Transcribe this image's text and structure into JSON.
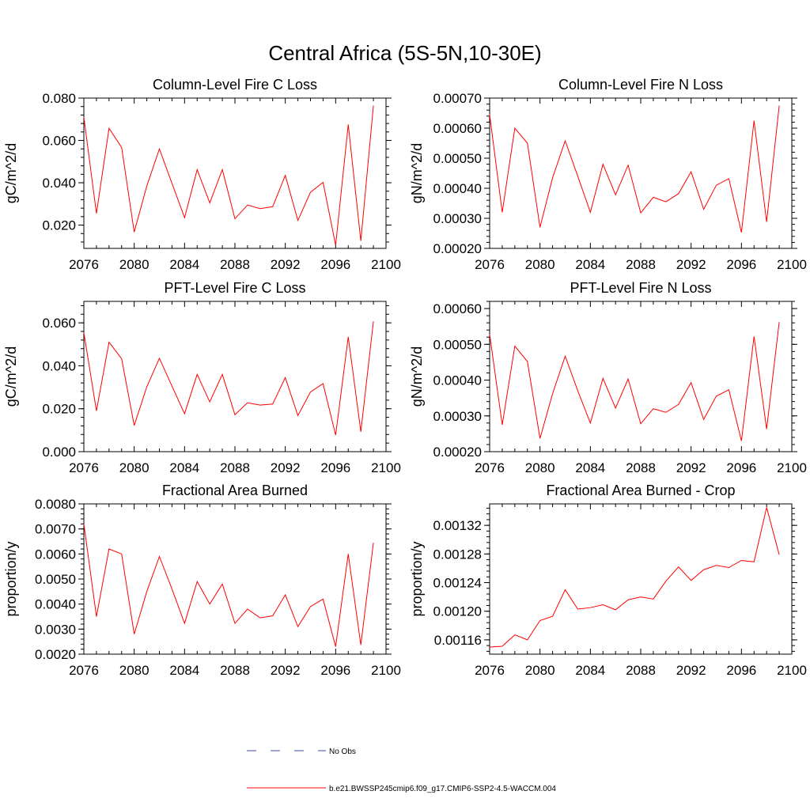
{
  "figure": {
    "title": "Central Africa (5S-5N,10-30E)",
    "legend": [
      {
        "label": "No Obs",
        "color": "#3b4fa3",
        "dash": true
      },
      {
        "label": "b.e21.BWSSP245cmip6.f09_g17.CMIP6-SSP2-4.5-WACCM.004",
        "color": "#ff0000",
        "dash": false
      }
    ]
  },
  "chart_data": [
    {
      "type": "line",
      "title": "Column-Level Fire C Loss",
      "xlabel": "",
      "ylabel": "gC/m^2/d",
      "xlim": [
        2076,
        2100
      ],
      "ylim": [
        0.009,
        0.08
      ],
      "xticks": [
        2076,
        2080,
        2084,
        2088,
        2092,
        2096,
        2100
      ],
      "xtick_labels": [
        "2076",
        "2080",
        "2084",
        "2088",
        "2092",
        "2096",
        "2100"
      ],
      "yticks": [
        0.02,
        0.04,
        0.06,
        0.08
      ],
      "ytick_labels": [
        "0.020",
        "0.040",
        "0.060",
        "0.080"
      ],
      "series": [
        {
          "color": "#ff0000",
          "x": [
            2076,
            2077,
            2078,
            2079,
            2080,
            2081,
            2082,
            2083,
            2084,
            2085,
            2086,
            2087,
            2088,
            2089,
            2090,
            2091,
            2092,
            2093,
            2094,
            2095,
            2096,
            2097,
            2098,
            2099
          ],
          "y": [
            0.071,
            0.0255,
            0.0657,
            0.0567,
            0.0167,
            0.0385,
            0.056,
            0.0397,
            0.0235,
            0.0462,
            0.0305,
            0.0462,
            0.023,
            0.0295,
            0.0278,
            0.0287,
            0.0435,
            0.0222,
            0.0355,
            0.0402,
            0.0105,
            0.0675,
            0.0125,
            0.0765
          ]
        }
      ]
    },
    {
      "type": "line",
      "title": "Column-Level Fire N Loss",
      "xlabel": "",
      "ylabel": "gN/m^2/d",
      "xlim": [
        2076,
        2100
      ],
      "ylim": [
        0.0002,
        0.0007
      ],
      "xticks": [
        2076,
        2080,
        2084,
        2088,
        2092,
        2096,
        2100
      ],
      "xtick_labels": [
        "2076",
        "2080",
        "2084",
        "2088",
        "2092",
        "2096",
        "2100"
      ],
      "yticks": [
        0.0002,
        0.0003,
        0.0004,
        0.0005,
        0.0006,
        0.0007
      ],
      "ytick_labels": [
        "0.00020",
        "0.00030",
        "0.00040",
        "0.00050",
        "0.00060",
        "0.00070"
      ],
      "series": [
        {
          "color": "#ff0000",
          "x": [
            2076,
            2077,
            2078,
            2079,
            2080,
            2081,
            2082,
            2083,
            2084,
            2085,
            2086,
            2087,
            2088,
            2089,
            2090,
            2091,
            2092,
            2093,
            2094,
            2095,
            2096,
            2097,
            2098,
            2099
          ],
          "y": [
            0.000645,
            0.00032,
            0.0006,
            0.00055,
            0.00027,
            0.000435,
            0.000558,
            0.00044,
            0.00032,
            0.00048,
            0.000378,
            0.000477,
            0.000318,
            0.00037,
            0.000355,
            0.000382,
            0.000455,
            0.00033,
            0.00041,
            0.000432,
            0.000253,
            0.000625,
            0.000288,
            0.000675
          ]
        }
      ]
    },
    {
      "type": "line",
      "title": "PFT-Level Fire C Loss",
      "xlabel": "",
      "ylabel": "gC/m^2/d",
      "xlim": [
        2076,
        2100
      ],
      "ylim": [
        0.0,
        0.07
      ],
      "xticks": [
        2076,
        2080,
        2084,
        2088,
        2092,
        2096,
        2100
      ],
      "xtick_labels": [
        "2076",
        "2080",
        "2084",
        "2088",
        "2092",
        "2096",
        "2100"
      ],
      "yticks": [
        0.0,
        0.02,
        0.04,
        0.06
      ],
      "ytick_labels": [
        "0.000",
        "0.020",
        "0.040",
        "0.060"
      ],
      "series": [
        {
          "color": "#ff0000",
          "x": [
            2076,
            2077,
            2078,
            2079,
            2080,
            2081,
            2082,
            2083,
            2084,
            2085,
            2086,
            2087,
            2088,
            2089,
            2090,
            2091,
            2092,
            2093,
            2094,
            2095,
            2096,
            2097,
            2098,
            2099
          ],
          "y": [
            0.0555,
            0.019,
            0.051,
            0.0433,
            0.0122,
            0.0302,
            0.0435,
            0.0305,
            0.0177,
            0.036,
            0.0232,
            0.036,
            0.0172,
            0.0228,
            0.0217,
            0.0222,
            0.0345,
            0.0168,
            0.0278,
            0.0317,
            0.0077,
            0.0535,
            0.0093,
            0.0607
          ]
        }
      ]
    },
    {
      "type": "line",
      "title": "PFT-Level Fire N Loss",
      "xlabel": "",
      "ylabel": "gN/m^2/d",
      "xlim": [
        2076,
        2100
      ],
      "ylim": [
        0.0002,
        0.00062
      ],
      "xticks": [
        2076,
        2080,
        2084,
        2088,
        2092,
        2096,
        2100
      ],
      "xtick_labels": [
        "2076",
        "2080",
        "2084",
        "2088",
        "2092",
        "2096",
        "2100"
      ],
      "yticks": [
        0.0002,
        0.0003,
        0.0004,
        0.0005,
        0.0006
      ],
      "ytick_labels": [
        "0.00020",
        "0.00030",
        "0.00040",
        "0.00050",
        "0.00060"
      ],
      "series": [
        {
          "color": "#ff0000",
          "x": [
            2076,
            2077,
            2078,
            2079,
            2080,
            2081,
            2082,
            2083,
            2084,
            2085,
            2086,
            2087,
            2088,
            2089,
            2090,
            2091,
            2092,
            2093,
            2094,
            2095,
            2096,
            2097,
            2098,
            2099
          ],
          "y": [
            0.000528,
            0.000275,
            0.000495,
            0.000452,
            0.000237,
            0.000362,
            0.000467,
            0.00037,
            0.00028,
            0.000405,
            0.000322,
            0.000403,
            0.000278,
            0.00032,
            0.00031,
            0.000332,
            0.000393,
            0.00029,
            0.000355,
            0.000373,
            0.00023,
            0.000522,
            0.000263,
            0.000562
          ]
        }
      ]
    },
    {
      "type": "line",
      "title": "Fractional Area Burned",
      "xlabel": "",
      "ylabel": "proportion/y",
      "xlim": [
        2076,
        2100
      ],
      "ylim": [
        0.002,
        0.008
      ],
      "xticks": [
        2076,
        2080,
        2084,
        2088,
        2092,
        2096,
        2100
      ],
      "xtick_labels": [
        "2076",
        "2080",
        "2084",
        "2088",
        "2092",
        "2096",
        "2100"
      ],
      "yticks": [
        0.002,
        0.003,
        0.004,
        0.005,
        0.006,
        0.007,
        0.008
      ],
      "ytick_labels": [
        "0.0020",
        "0.0030",
        "0.0040",
        "0.0050",
        "0.0060",
        "0.0070",
        "0.0080"
      ],
      "series": [
        {
          "color": "#ff0000",
          "x": [
            2076,
            2077,
            2078,
            2079,
            2080,
            2081,
            2082,
            2083,
            2084,
            2085,
            2086,
            2087,
            2088,
            2089,
            2090,
            2091,
            2092,
            2093,
            2094,
            2095,
            2096,
            2097,
            2098,
            2099
          ],
          "y": [
            0.0072,
            0.0035,
            0.0062,
            0.006,
            0.0028,
            0.0045,
            0.0059,
            0.0046,
            0.00323,
            0.0049,
            0.004,
            0.0048,
            0.00323,
            0.0038,
            0.00345,
            0.00353,
            0.00437,
            0.0031,
            0.0039,
            0.0042,
            0.0023,
            0.006,
            0.00237,
            0.00645
          ]
        }
      ]
    },
    {
      "type": "line",
      "title": "Fractional Area Burned - Crop",
      "xlabel": "",
      "ylabel": "proportion/y",
      "xlim": [
        2076,
        2100
      ],
      "ylim": [
        0.00114,
        0.00135
      ],
      "xticks": [
        2076,
        2080,
        2084,
        2088,
        2092,
        2096,
        2100
      ],
      "xtick_labels": [
        "2076",
        "2080",
        "2084",
        "2088",
        "2092",
        "2096",
        "2100"
      ],
      "yticks": [
        0.00116,
        0.0012,
        0.00124,
        0.00128,
        0.00132
      ],
      "ytick_labels": [
        "0.00116",
        "0.00120",
        "0.00124",
        "0.00128",
        "0.00132"
      ],
      "series": [
        {
          "color": "#ff0000",
          "x": [
            2076,
            2077,
            2078,
            2079,
            2080,
            2081,
            2082,
            2083,
            2084,
            2085,
            2086,
            2087,
            2088,
            2089,
            2090,
            2091,
            2092,
            2093,
            2094,
            2095,
            2096,
            2097,
            2098,
            2099
          ],
          "y": [
            0.00115,
            0.001151,
            0.001167,
            0.00116,
            0.001187,
            0.001193,
            0.00123,
            0.001203,
            0.001205,
            0.001209,
            0.001202,
            0.001216,
            0.00122,
            0.001217,
            0.001242,
            0.001262,
            0.001243,
            0.001258,
            0.001264,
            0.001261,
            0.001271,
            0.001269,
            0.001345,
            0.001279
          ]
        }
      ]
    }
  ]
}
